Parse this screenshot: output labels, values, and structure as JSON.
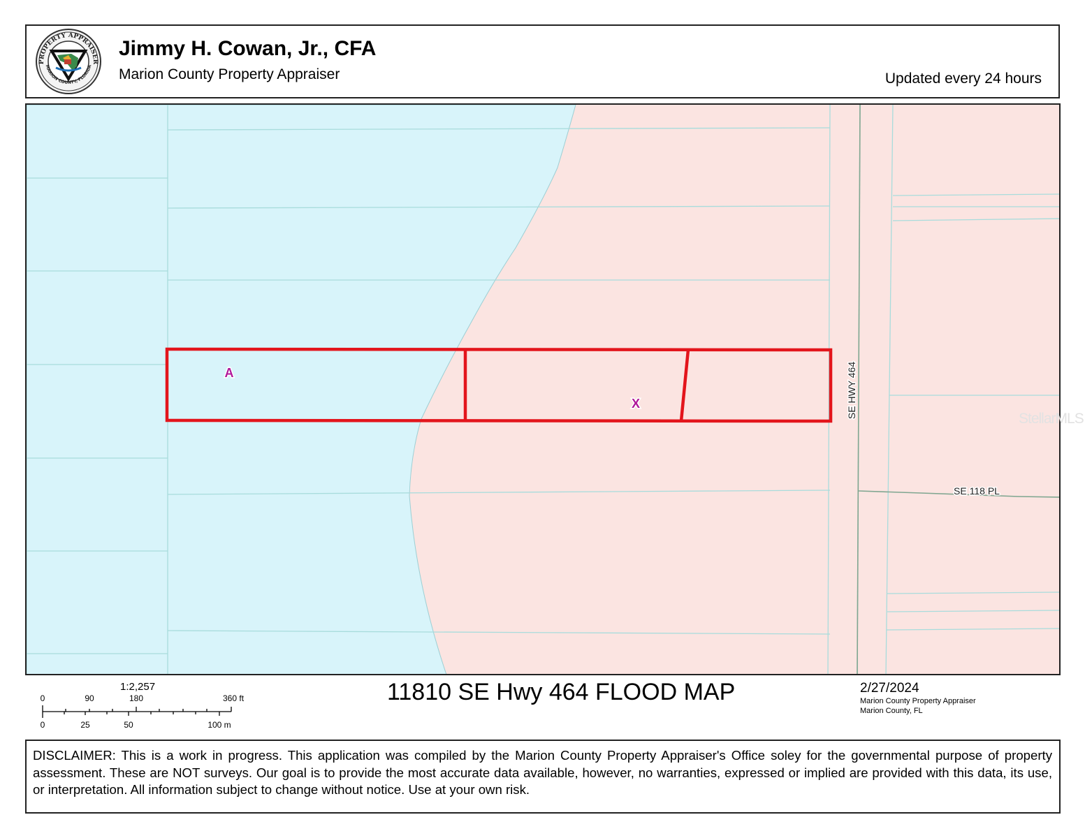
{
  "header": {
    "appraiser_name": "Jimmy H. Cowan, Jr., CFA",
    "office_name": "Marion County Property Appraiser",
    "update_note": "Updated every 24 hours",
    "logo": {
      "icon": "property-appraiser-seal-icon",
      "ring_text_top": "PROPERTY APPRAISER",
      "ring_text_bottom": "MARION COUNTY, FLORIDA"
    }
  },
  "map": {
    "flood_zone_a_label": "A",
    "flood_zone_x_label": "X",
    "road_hwy_label": "SE HWY 464",
    "road_118_label": "SE 118 PL",
    "watermark": "StellarMLS",
    "colors": {
      "zone_a_fill": "#d8f4fa",
      "zone_x_fill": "#fbe4e1",
      "parcel_line": "#a8dcdc",
      "subject_outline": "#e3151c",
      "zone_label": "#b0189a"
    }
  },
  "footer": {
    "scale_ratio": "1:2,257",
    "scale_ft_labels": [
      "0",
      "90",
      "180",
      "360 ft"
    ],
    "scale_m_labels": [
      "0",
      "25",
      "50",
      "100 m"
    ],
    "map_title": "11810 SE Hwy 464 FLOOD MAP",
    "date": "2/27/2024",
    "credit_office": "Marion County Property Appraiser",
    "credit_location": "Marion County, FL",
    "disclaimer": "DISCLAIMER: This is a work in progress. This application was compiled by the Marion County Property Appraiser's Office soley for the governmental purpose of property assessment. These are NOT surveys. Our goal is to provide the most accurate data available, however, no warranties, expressed or implied are provided with this data, its use, or interpretation. All information subject to change without notice. Use at your own risk."
  }
}
